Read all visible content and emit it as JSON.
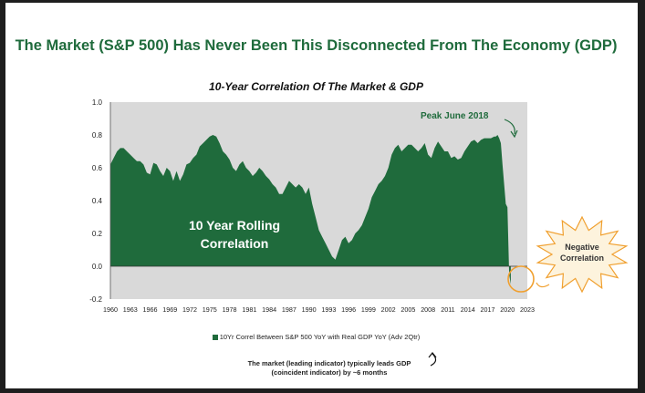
{
  "title": "The Market (S&P 500) Has Never Been This Disconnected From The Economy (GDP)",
  "chart_data": {
    "type": "area",
    "title": "10-Year Correlation Of The Market & GDP",
    "xlabel": "",
    "ylabel": "",
    "xlim": [
      1960,
      2023
    ],
    "ylim": [
      -0.2,
      1.0
    ],
    "yticks": [
      "1.0",
      "0.8",
      "0.6",
      "0.4",
      "0.2",
      "0.0",
      "-0.2"
    ],
    "xticks": [
      "1960",
      "1963",
      "1966",
      "1969",
      "1972",
      "1975",
      "1978",
      "1981",
      "1984",
      "1987",
      "1990",
      "1993",
      "1996",
      "1999",
      "2002",
      "2005",
      "2008",
      "2011",
      "2014",
      "2017",
      "2020",
      "2023"
    ],
    "grid": false,
    "legend_position": "bottom",
    "series": [
      {
        "name": "10Yr Correl Between S&P 500 YoY with Real GDP YoY (Adv 2Qtr)",
        "color": "#1f6b3c",
        "x": [
          1960.0,
          1960.5,
          1961.0,
          1961.5,
          1962.0,
          1962.5,
          1963.0,
          1963.5,
          1964.0,
          1964.5,
          1965.0,
          1965.5,
          1966.0,
          1966.5,
          1967.0,
          1967.5,
          1968.0,
          1968.5,
          1969.0,
          1969.5,
          1970.0,
          1970.5,
          1971.0,
          1971.5,
          1972.0,
          1972.5,
          1973.0,
          1973.5,
          1974.0,
          1974.5,
          1975.0,
          1975.5,
          1976.0,
          1976.5,
          1977.0,
          1977.5,
          1978.0,
          1978.5,
          1979.0,
          1979.5,
          1980.0,
          1980.5,
          1981.0,
          1981.5,
          1982.0,
          1982.5,
          1983.0,
          1983.5,
          1984.0,
          1984.5,
          1985.0,
          1985.5,
          1986.0,
          1986.5,
          1987.0,
          1987.5,
          1988.0,
          1988.5,
          1989.0,
          1989.5,
          1990.0,
          1990.5,
          1991.0,
          1991.5,
          1992.0,
          1992.5,
          1993.0,
          1993.5,
          1994.0,
          1994.5,
          1995.0,
          1995.5,
          1996.0,
          1996.5,
          1997.0,
          1997.5,
          1998.0,
          1998.5,
          1999.0,
          1999.5,
          2000.0,
          2000.5,
          2001.0,
          2001.5,
          2002.0,
          2002.5,
          2003.0,
          2003.5,
          2004.0,
          2004.5,
          2005.0,
          2005.5,
          2006.0,
          2006.5,
          2007.0,
          2007.5,
          2008.0,
          2008.5,
          2009.0,
          2009.5,
          2010.0,
          2010.5,
          2011.0,
          2011.5,
          2012.0,
          2012.5,
          2013.0,
          2013.5,
          2014.0,
          2014.5,
          2015.0,
          2015.5,
          2016.0,
          2016.5,
          2017.0,
          2017.5,
          2018.0,
          2018.25,
          2018.5,
          2018.75,
          2019.0,
          2019.25,
          2019.5,
          2019.75,
          2020.0,
          2020.25,
          2020.5
        ],
        "values": [
          0.62,
          0.66,
          0.7,
          0.72,
          0.72,
          0.7,
          0.68,
          0.66,
          0.64,
          0.64,
          0.62,
          0.57,
          0.56,
          0.63,
          0.62,
          0.58,
          0.55,
          0.6,
          0.58,
          0.52,
          0.58,
          0.52,
          0.56,
          0.62,
          0.63,
          0.66,
          0.68,
          0.73,
          0.75,
          0.77,
          0.79,
          0.8,
          0.79,
          0.75,
          0.7,
          0.68,
          0.65,
          0.6,
          0.58,
          0.62,
          0.64,
          0.6,
          0.58,
          0.55,
          0.57,
          0.6,
          0.58,
          0.55,
          0.53,
          0.5,
          0.48,
          0.44,
          0.44,
          0.48,
          0.52,
          0.5,
          0.48,
          0.5,
          0.48,
          0.44,
          0.48,
          0.38,
          0.3,
          0.22,
          0.18,
          0.14,
          0.1,
          0.06,
          0.04,
          0.1,
          0.16,
          0.18,
          0.14,
          0.16,
          0.2,
          0.22,
          0.25,
          0.3,
          0.35,
          0.42,
          0.46,
          0.5,
          0.52,
          0.55,
          0.6,
          0.68,
          0.72,
          0.74,
          0.7,
          0.72,
          0.74,
          0.74,
          0.72,
          0.7,
          0.72,
          0.75,
          0.68,
          0.66,
          0.72,
          0.76,
          0.73,
          0.7,
          0.7,
          0.66,
          0.67,
          0.65,
          0.66,
          0.7,
          0.73,
          0.76,
          0.77,
          0.75,
          0.77,
          0.78,
          0.78,
          0.78,
          0.79,
          0.79,
          0.8,
          0.78,
          0.75,
          0.62,
          0.5,
          0.38,
          0.36,
          -0.05,
          -0.11
        ]
      }
    ],
    "annotations": {
      "rolling_label": [
        "10 Year Rolling",
        "Correlation"
      ],
      "peak_label": "Peak June 2018",
      "negative_label": [
        "Negative",
        "Correlation"
      ]
    }
  },
  "legend_label": "10Yr Correl Between S&P 500 YoY with Real GDP YoY (Adv 2Qtr)",
  "footnote": [
    "The market (leading indicator) typically leads GDP",
    "(coincident indicator) by ~6 months"
  ],
  "colors": {
    "title_green": "#1f6b3c",
    "series_green": "#1f6b3c",
    "plot_bg": "#d9d9d9",
    "callout_orange": "#f0a030",
    "callout_fill": "#fdf3dd"
  }
}
